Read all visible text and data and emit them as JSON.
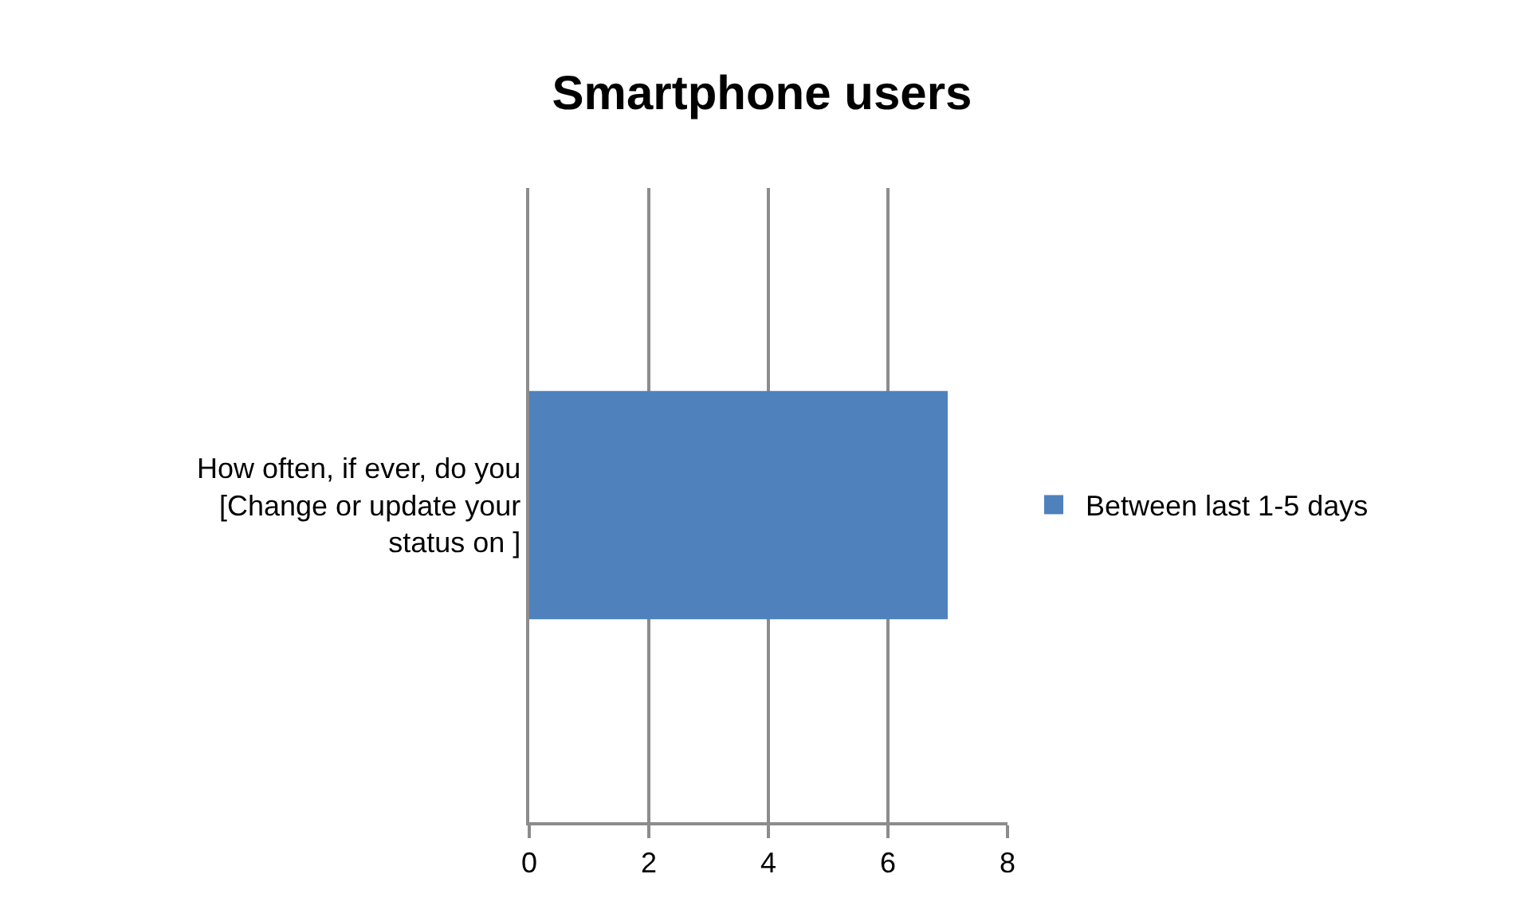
{
  "chart_data": {
    "type": "bar",
    "orientation": "horizontal",
    "title": "Smartphone users",
    "categories": [
      "How often, if ever, do you [Change or update your status on ]"
    ],
    "series": [
      {
        "name": "Between last 1-5 days",
        "color": "#4f81bd",
        "values": [
          7
        ]
      }
    ],
    "xlim": [
      0,
      8
    ],
    "xticks": [
      0,
      2,
      4,
      6,
      8
    ],
    "grid": "x",
    "legend": "right"
  }
}
